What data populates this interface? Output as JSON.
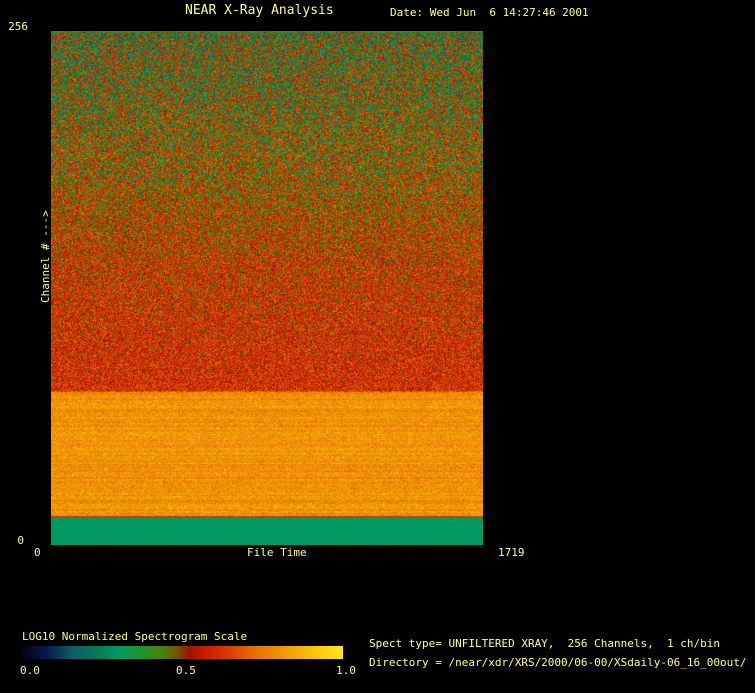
{
  "window": {
    "background": "#000000",
    "text_color": "#ffff8c"
  },
  "header": {
    "title": "NEAR X-Ray Analysis",
    "date": "Date: Wed Jun  6 14:27:46 2001"
  },
  "chart_data": {
    "type": "heatmap",
    "title": "NEAR X-Ray Analysis",
    "xlabel": "File Time",
    "ylabel": "Channel # --->",
    "xlim": [
      0,
      1719
    ],
    "ylim": [
      0,
      256
    ],
    "x_tick_labels": [
      "0",
      "1719"
    ],
    "y_tick_labels": [
      "0",
      "256"
    ],
    "colorbar": {
      "label": "LOG10 Normalized Spectrogram Scale",
      "ticks": [
        "0.0",
        "0.5",
        "1.0"
      ],
      "palette": [
        {
          "t": 0.0,
          "c": "#020214"
        },
        {
          "t": 0.08,
          "c": "#061c4e"
        },
        {
          "t": 0.16,
          "c": "#0d5f66"
        },
        {
          "t": 0.24,
          "c": "#077a55"
        },
        {
          "t": 0.3,
          "c": "#019a63"
        },
        {
          "t": 0.38,
          "c": "#1f9322"
        },
        {
          "t": 0.44,
          "c": "#4f7e0c"
        },
        {
          "t": 0.48,
          "c": "#6f5a02"
        },
        {
          "t": 0.52,
          "c": "#9c1400"
        },
        {
          "t": 0.57,
          "c": "#c81c00"
        },
        {
          "t": 0.63,
          "c": "#d63500"
        },
        {
          "t": 0.72,
          "c": "#e56d02"
        },
        {
          "t": 0.82,
          "c": "#f09b07"
        },
        {
          "t": 0.92,
          "c": "#fdc80b"
        },
        {
          "t": 1.0,
          "c": "#ffe81a"
        }
      ]
    },
    "regions": [
      {
        "channels": "~197-256",
        "appearance": "noisy green with dark navy and red speckles, solid green strip at very top"
      },
      {
        "channels": "~118-197",
        "appearance": "gradual green-to-red noisy gradient"
      },
      {
        "channels": "~75-118",
        "appearance": "saturated red-orange noise with sparse olive speckles"
      },
      {
        "channels": "~13-75",
        "appearance": "bright orange-yellow band with horizontal striping"
      },
      {
        "channels": "0-13",
        "appearance": "solid sea-green band"
      }
    ],
    "intensity_profile": [
      {
        "t": 0.0,
        "base": 0.4,
        "noise": 0.05,
        "row": 0.0
      },
      {
        "t": 0.006,
        "base": 0.42,
        "noise": 0.3,
        "row": 0.01
      },
      {
        "t": 0.23,
        "base": 0.5,
        "noise": 0.26,
        "row": 0.01
      },
      {
        "t": 0.45,
        "base": 0.575,
        "noise": 0.16,
        "row": 0.01
      },
      {
        "t": 0.7,
        "base": 0.615,
        "noise": 0.11,
        "row": 0.01
      },
      {
        "t": 0.705,
        "base": 0.805,
        "noise": 0.065,
        "row": 0.035
      },
      {
        "t": 0.944,
        "base": 0.805,
        "noise": 0.065,
        "row": 0.035
      },
      {
        "t": 0.9465,
        "base": 0.49,
        "noise": 0.03,
        "row": 0.0
      },
      {
        "t": 0.949,
        "base": 0.3,
        "noise": 0.006,
        "row": 0.003
      },
      {
        "t": 1.0,
        "base": 0.3,
        "noise": 0.006,
        "row": 0.003
      }
    ]
  },
  "footer": {
    "spect_type": "Spect type= UNFILTERED XRAY,  256 Channels,  1 ch/bin",
    "directory": "Directory = /near/xdr/XRS/2000/06-00/XSdaily-06_16_00out/"
  }
}
